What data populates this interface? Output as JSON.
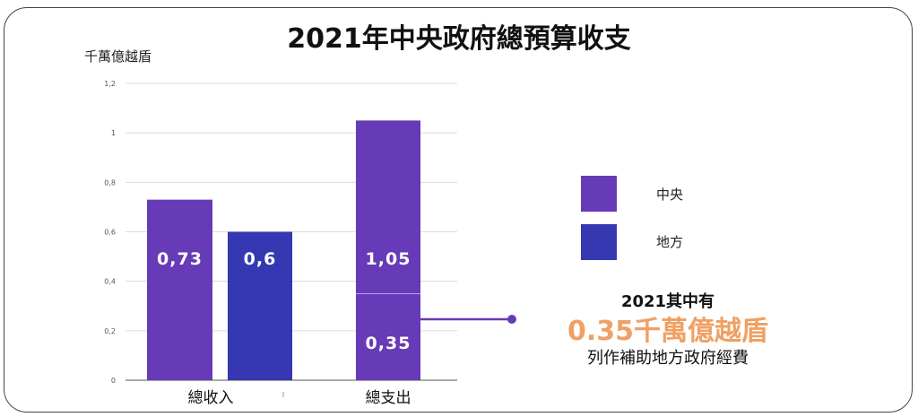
{
  "chart_data": {
    "type": "bar",
    "title": "2021年中央政府總預算收支",
    "ylabel": "千萬億越盾",
    "ylim": [
      0,
      1.2
    ],
    "yticks": [
      "0",
      "0,2",
      "0,4",
      "0,6",
      "0,8",
      "1",
      "1,2"
    ],
    "yticks_values": [
      0,
      0.2,
      0.4,
      0.6,
      0.8,
      1.0,
      1.2
    ],
    "categories": [
      "總收入",
      "總支出"
    ],
    "bars": [
      {
        "category": "總收入",
        "series": "中央",
        "value": 0.73,
        "label": "0,73"
      },
      {
        "category": "總收入",
        "series": "地方",
        "value": 0.6,
        "label": "0,6"
      },
      {
        "category": "總支出",
        "series": "中央",
        "value": 1.05,
        "label": "1,05"
      }
    ],
    "sub_segment": {
      "category": "總支出",
      "value": 0.35,
      "label": "0,35"
    },
    "legend": [
      {
        "name": "中央",
        "color": "#673ab7"
      },
      {
        "name": "地方",
        "color": "#3538b0"
      }
    ]
  },
  "annotation": {
    "line1": "2021其中有",
    "line2": "0.35千萬億越盾",
    "line3": "列作補助地方政府經費",
    "highlight_color": "#f0a064"
  }
}
